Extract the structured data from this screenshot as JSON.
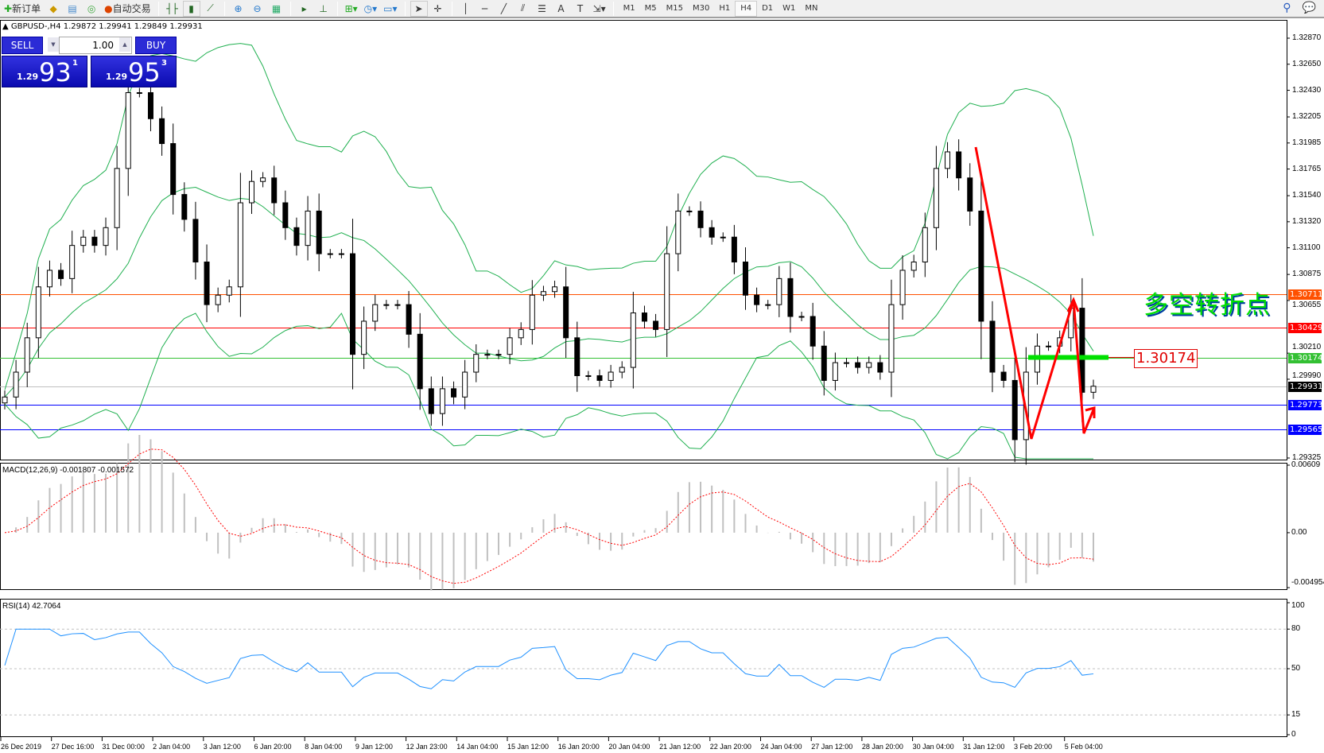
{
  "toolbar": {
    "new_order": "新订单",
    "auto_trading": "自动交易",
    "icons": [
      "new-order-icon",
      "market-watch-icon",
      "navigator-icon",
      "signals-icon",
      "auto-trading-icon",
      "bar-chart-icon",
      "candlestick-icon",
      "line-chart-icon",
      "zoom-in-icon",
      "zoom-out-icon",
      "tile-windows-icon",
      "autoscroll-icon",
      "chart-shift-icon",
      "indicators-icon",
      "periods-icon",
      "templates-icon",
      "cursor-icon",
      "crosshair-icon",
      "vertical-line-icon",
      "horizontal-line-icon",
      "trendline-icon",
      "equidistant-channel-icon",
      "fibonacci-icon",
      "text-icon",
      "text-label-icon",
      "arrows-icon"
    ],
    "timeframes": [
      "M1",
      "M5",
      "M15",
      "M30",
      "H1",
      "H4",
      "D1",
      "W1",
      "MN"
    ],
    "active_timeframe": "H4"
  },
  "chart": {
    "symbol_line": "GBPUSD-,H4  1.29872 1.29941 1.29849 1.29931",
    "trade_panel": {
      "sell": "SELL",
      "buy": "BUY",
      "lot": "1.00",
      "bid_prefix": "1.29",
      "bid_big": "93",
      "bid_sup": "1",
      "ask_prefix": "1.29",
      "ask_big": "95",
      "ask_sup": "3"
    },
    "price_axis": [
      "1.32870",
      "1.32650",
      "1.32430",
      "1.32205",
      "1.31985",
      "1.31765",
      "1.31540",
      "1.31320",
      "1.31100",
      "1.30875",
      "1.30655",
      "1.30210",
      "1.29990",
      "1.29325"
    ],
    "levels": [
      {
        "price": "1.30711",
        "color": "#ff5000"
      },
      {
        "price": "1.30429",
        "color": "#ff0000"
      },
      {
        "price": "1.30174",
        "color": "#33c033"
      },
      {
        "price": "1.29931",
        "color": "#000000",
        "line": "#c0c0c0"
      },
      {
        "price": "1.29773",
        "color": "#0000ff"
      },
      {
        "price": "1.29565",
        "color": "#0000ff"
      }
    ],
    "annotation_text": "多空转折点",
    "annotation_price": "1.30174",
    "colors": {
      "bands": "#20b050",
      "candle": "#000000",
      "arrows": "#ff0000",
      "macd_hist": "#c0c0c0",
      "macd_signal": "#ff0000",
      "rsi": "#1e90ff"
    },
    "macd_label": "MACD(12,26,9) -0.001807 -0.001572",
    "macd_axis": [
      "0.00609",
      "0.00",
      "-0.004954"
    ],
    "rsi_label": "RSI(14) 42.7064",
    "rsi_axis": [
      "100",
      "80",
      "50",
      "15",
      "0"
    ],
    "time_axis": [
      "26 Dec 2019",
      "27 Dec 16:00",
      "31 Dec 00:00",
      "2 Jan 04:00",
      "3 Jan 12:00",
      "6 Jan 20:00",
      "8 Jan 04:00",
      "9 Jan 12:00",
      "12 Jan 23:00",
      "14 Jan 04:00",
      "15 Jan 12:00",
      "16 Jan 20:00",
      "20 Jan 04:00",
      "21 Jan 12:00",
      "22 Jan 20:00",
      "24 Jan 04:00",
      "27 Jan 12:00",
      "28 Jan 20:00",
      "30 Jan 04:00",
      "31 Jan 12:00",
      "3 Feb 20:00",
      "5 Feb 04:00"
    ]
  },
  "chart_data": {
    "type": "candlestick",
    "price_range": [
      1.29325,
      1.3287
    ],
    "closes": [
      1.2984,
      1.3005,
      1.3034,
      1.3077,
      1.3091,
      1.3084,
      1.3112,
      1.3119,
      1.3112,
      1.3127,
      1.3177,
      1.3241,
      1.3241,
      1.3219,
      1.3198,
      1.3155,
      1.3134,
      1.3098,
      1.3062,
      1.307,
      1.3077,
      1.3148,
      1.3166,
      1.3169,
      1.3148,
      1.3127,
      1.3112,
      1.3141,
      1.3105,
      1.3105,
      1.3105,
      1.302,
      1.3048,
      1.3062,
      1.3062,
      1.3062,
      1.3037,
      1.2991,
      1.297,
      1.2991,
      1.2984,
      1.3005,
      1.302,
      1.302,
      1.302,
      1.3034,
      1.3041,
      1.307,
      1.3073,
      1.3077,
      1.3034,
      1.3002,
      1.3002,
      1.2998,
      1.3005,
      1.3009,
      1.3055,
      1.3048,
      1.3041,
      1.3105,
      1.3141,
      1.3141,
      1.3127,
      1.3119,
      1.3119,
      1.3098,
      1.307,
      1.3062,
      1.3062,
      1.3084,
      1.3052,
      1.3052,
      1.3027,
      1.2998,
      1.3013,
      1.3013,
      1.3009,
      1.3013,
      1.3005,
      1.3062,
      1.3091,
      1.3098,
      1.3127,
      1.3177,
      1.3191,
      1.3169,
      1.3141,
      1.3048,
      1.3005,
      1.2998,
      1.2948,
      1.3005,
      1.3027,
      1.3027,
      1.3034,
      1.3059,
      1.2988,
      1.29931
    ]
  }
}
